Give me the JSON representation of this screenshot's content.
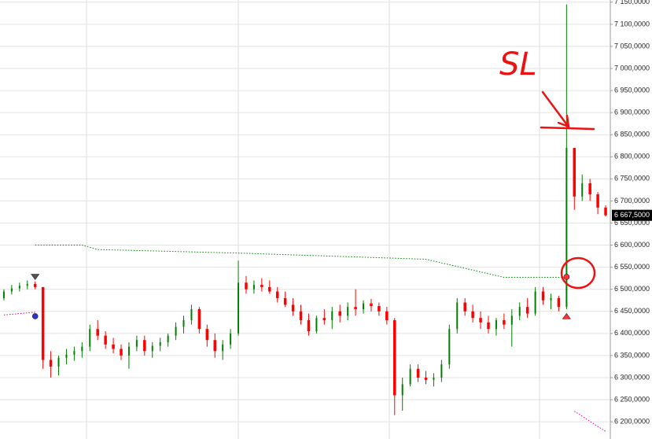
{
  "chart_data": {
    "type": "candlestick",
    "ylim": [
      6161,
      7155
    ],
    "yticks": [
      {
        "value": 7150,
        "label": "7 150,0000"
      },
      {
        "value": 7100,
        "label": "7 100,0000"
      },
      {
        "value": 7050,
        "label": "7 050,0000"
      },
      {
        "value": 7000,
        "label": "7 000,0000"
      },
      {
        "value": 6950,
        "label": "6 950,0000"
      },
      {
        "value": 6900,
        "label": "6 900,0000"
      },
      {
        "value": 6850,
        "label": "6 850,0000"
      },
      {
        "value": 6800,
        "label": "6 800,0000"
      },
      {
        "value": 6750,
        "label": "6 750,0000"
      },
      {
        "value": 6700,
        "label": "6 700,0000"
      },
      {
        "value": 6650,
        "label": "6 650,0000"
      },
      {
        "value": 6600,
        "label": "6 600,0000"
      },
      {
        "value": 6550,
        "label": "6 550,0000"
      },
      {
        "value": 6500,
        "label": "6 500,0000"
      },
      {
        "value": 6450,
        "label": "6 450,0000"
      },
      {
        "value": 6400,
        "label": "6 400,0000"
      },
      {
        "value": 6350,
        "label": "6 350,0000"
      },
      {
        "value": 6300,
        "label": "6 300,0000"
      },
      {
        "value": 6250,
        "label": "6 250,0000"
      },
      {
        "value": 6200,
        "label": "6 200,0000"
      }
    ],
    "grid": true,
    "up_color": "#008000",
    "down_color": "#ff0000",
    "open": [
      6480,
      6495,
      6502,
      6508,
      6512,
      6505,
      6340,
      6325,
      6345,
      6352,
      6360,
      6370,
      6410,
      6395,
      6375,
      6365,
      6350,
      6370,
      6385,
      6360,
      6372,
      6380,
      6395,
      6415,
      6430,
      6455,
      6410,
      6385,
      6360,
      6375,
      6400,
      6515,
      6500,
      6510,
      6505,
      6495,
      6480,
      6465,
      6450,
      6430,
      6405,
      6435,
      6430,
      6450,
      6440,
      6460,
      6455,
      6468,
      6462,
      6450,
      6430,
      6260,
      6285,
      6320,
      6300,
      6295,
      6300,
      6330,
      6410,
      6470,
      6450,
      6435,
      6425,
      6410,
      6430,
      6420,
      6440,
      6460,
      6445,
      6495,
      6475,
      6480,
      6460,
      6820,
      6710,
      6740,
      6715,
      6685
    ],
    "high": [
      6500,
      6510,
      6515,
      6520,
      6518,
      6505,
      6360,
      6350,
      6365,
      6370,
      6380,
      6420,
      6430,
      6405,
      6390,
      6375,
      6380,
      6395,
      6395,
      6380,
      6390,
      6400,
      6425,
      6440,
      6465,
      6460,
      6420,
      6400,
      6385,
      6410,
      6565,
      6530,
      6520,
      6525,
      6520,
      6505,
      6495,
      6480,
      6465,
      6445,
      6440,
      6455,
      6460,
      6465,
      6470,
      6500,
      6475,
      6478,
      6470,
      6460,
      6435,
      6300,
      6330,
      6330,
      6315,
      6310,
      6340,
      6420,
      6480,
      6480,
      6465,
      6450,
      6440,
      6435,
      6445,
      6455,
      6470,
      6480,
      6505,
      6505,
      6490,
      6485,
      7145,
      6820,
      6760,
      6750,
      6720,
      6690
    ],
    "low": [
      6475,
      6488,
      6495,
      6500,
      6500,
      6320,
      6300,
      6305,
      6330,
      6338,
      6345,
      6360,
      6385,
      6365,
      6355,
      6340,
      6320,
      6360,
      6350,
      6345,
      6360,
      6370,
      6385,
      6400,
      6420,
      6400,
      6370,
      6345,
      6340,
      6365,
      6395,
      6490,
      6490,
      6495,
      6490,
      6470,
      6460,
      6440,
      6420,
      6395,
      6400,
      6420,
      6410,
      6425,
      6430,
      6440,
      6445,
      6450,
      6440,
      6420,
      6215,
      6225,
      6280,
      6290,
      6285,
      6280,
      6290,
      6320,
      6400,
      6440,
      6425,
      6410,
      6400,
      6395,
      6410,
      6370,
      6430,
      6435,
      6440,
      6465,
      6455,
      6450,
      6455,
      6680,
      6700,
      6700,
      6670,
      6665
    ],
    "close": [
      6495,
      6502,
      6508,
      6512,
      6505,
      6340,
      6325,
      6345,
      6352,
      6360,
      6370,
      6410,
      6395,
      6375,
      6365,
      6350,
      6370,
      6385,
      6360,
      6372,
      6380,
      6395,
      6415,
      6430,
      6455,
      6410,
      6385,
      6360,
      6375,
      6400,
      6515,
      6500,
      6510,
      6505,
      6495,
      6480,
      6465,
      6450,
      6430,
      6405,
      6435,
      6430,
      6450,
      6440,
      6460,
      6455,
      6468,
      6462,
      6450,
      6430,
      6260,
      6285,
      6320,
      6300,
      6295,
      6300,
      6330,
      6410,
      6470,
      6450,
      6435,
      6425,
      6410,
      6430,
      6420,
      6440,
      6460,
      6445,
      6495,
      6475,
      6480,
      6460,
      6820,
      6710,
      6740,
      6715,
      6685,
      6667.5
    ],
    "overlays": [
      {
        "color": "#008000",
        "x": [
          4,
          10,
          12,
          30,
          54,
          64,
          72
        ],
        "values": [
          6600,
          6600,
          6590,
          6582,
          6568,
          6527,
          6527
        ]
      },
      {
        "color": "#cc0099",
        "x": [
          0,
          4
        ],
        "values": [
          6442,
          6448
        ]
      },
      {
        "color": "#cc0099",
        "x": [
          73,
          77
        ],
        "values": [
          6224,
          6178
        ]
      }
    ],
    "markers": [
      {
        "shape": "triangle-down",
        "x": 4,
        "value": 6527,
        "color": "#555555"
      },
      {
        "shape": "circle",
        "x": 4,
        "value": 6439,
        "color": "#3333cc"
      },
      {
        "shape": "triangle-up",
        "x": 72,
        "value": 6440,
        "color": "#ff3333"
      },
      {
        "shape": "circle",
        "x": 72,
        "value": 6528,
        "color": "#ff3333"
      }
    ],
    "last_price": {
      "value": 6667.5,
      "label": "6 667,5000"
    },
    "annotation": "SL"
  }
}
